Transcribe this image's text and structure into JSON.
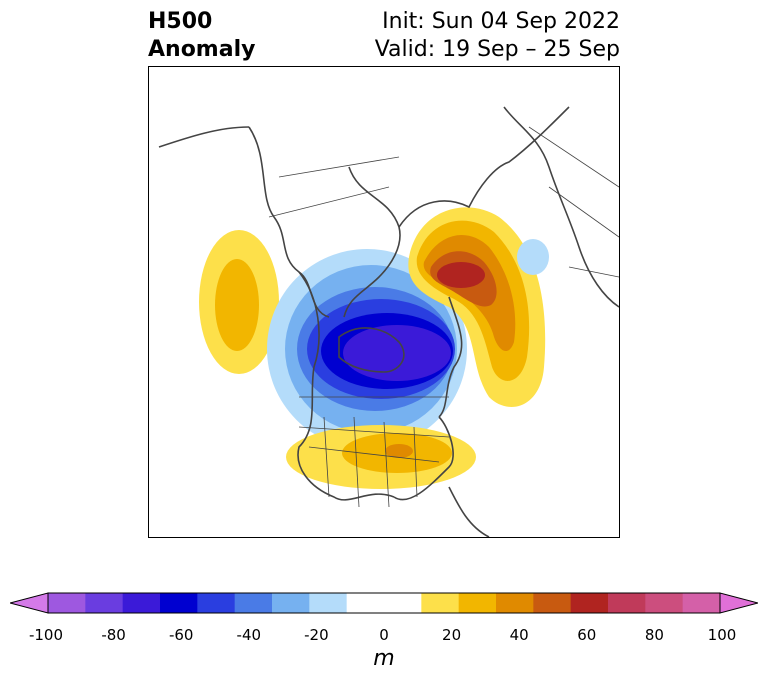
{
  "title": {
    "left_line1": "H500",
    "left_line2": "Anomaly",
    "right_line1": "Init: Sun 04 Sep 2022",
    "right_line2": "Valid: 19 Sep – 25 Sep"
  },
  "colorbar": {
    "units": "m",
    "ticks": [
      "-100",
      "-80",
      "-60",
      "-40",
      "-20",
      "0",
      "20",
      "40",
      "60",
      "80",
      "100"
    ],
    "colors": [
      "#d47ae8",
      "#9e58e0",
      "#6a3de0",
      "#3b1ad8",
      "#0000d0",
      "#2a3ee0",
      "#4a7be6",
      "#76b1f0",
      "#b4dcfa",
      "#ffffff",
      "#ffffff",
      "#fde04a",
      "#f2b600",
      "#e08a00",
      "#c85a10",
      "#b02420",
      "#c03a5a",
      "#cc4e7e",
      "#d460a8",
      "#e070d8"
    ]
  },
  "map": {
    "region": "North America and Arctic, polar stereographic",
    "anomaly_features": [
      {
        "label": "trough",
        "location": "Hudson Bay / central Canada",
        "sign": "negative",
        "peak_m": -80
      },
      {
        "label": "ridge",
        "location": "Greenland / north Atlantic",
        "sign": "positive",
        "peak_m": 60
      },
      {
        "label": "ridge",
        "location": "northeast Pacific",
        "sign": "positive",
        "peak_m": 30
      },
      {
        "label": "ridge",
        "location": "central and eastern United States",
        "sign": "positive",
        "peak_m": 40
      },
      {
        "label": "weak trough",
        "location": "Scandinavia",
        "sign": "negative",
        "peak_m": -20
      }
    ]
  }
}
